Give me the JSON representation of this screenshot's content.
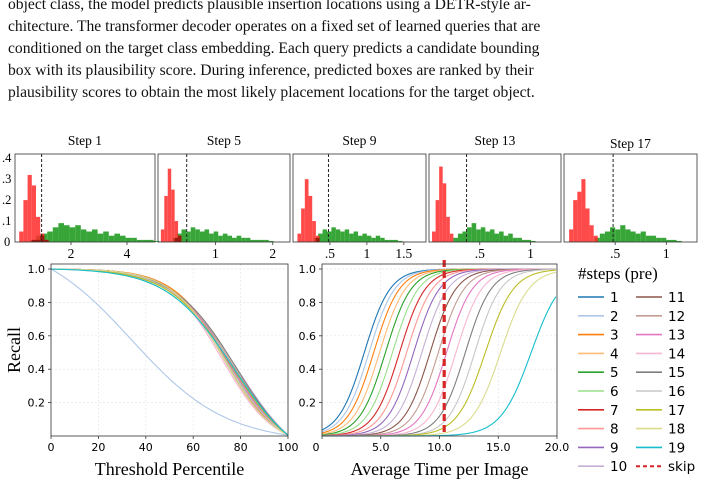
{
  "paragraph": [
    "object class, the model predicts plausible insertion locations using a DETR-style ar-",
    "chitecture. The transformer decoder operates on a fixed set of learned queries that are",
    "conditioned on the target class embedding. Each query predicts a candidate bounding",
    "box with its plausibility score. During inference, predicted boxes are ranked by their",
    "plausibility scores to obtain the most likely placement locations for the target object."
  ],
  "colors": {
    "red_hist": "#ff2a2a",
    "green_hist": "#2ca02c",
    "overlap_hist": "#9a1a10",
    "skip": "#d62728"
  },
  "chart_data": [
    {
      "type": "histogram",
      "panels": [
        {
          "title": "Step 1",
          "xticks": [
            "2",
            "4"
          ],
          "xtick_values": [
            2,
            4
          ],
          "xlim": [
            0,
            5.0
          ],
          "dashed_x": 0.95,
          "red": {
            "start": 0.15,
            "width": 0.15,
            "counts": [
              0.05,
              0.2,
              0.32,
              0.27,
              0.12,
              0.04,
              0.01
            ]
          },
          "green": {
            "start": 0.55,
            "width": 0.2,
            "counts": [
              0.01,
              0.03,
              0.04,
              0.05,
              0.07,
              0.09,
              0.08,
              0.07,
              0.08,
              0.06,
              0.05,
              0.06,
              0.04,
              0.05,
              0.03,
              0.04,
              0.03,
              0.02,
              0.02,
              0.01,
              0.01,
              0.01,
              0.005
            ]
          }
        },
        {
          "title": "Step 5",
          "xticks": [
            "1",
            "2"
          ],
          "xtick_values": [
            1,
            2
          ],
          "xlim": [
            0,
            2.3
          ],
          "dashed_x": 0.5,
          "red": {
            "start": 0.05,
            "width": 0.06,
            "counts": [
              0.06,
              0.22,
              0.35,
              0.25,
              0.1,
              0.03
            ]
          },
          "green": {
            "start": 0.25,
            "width": 0.08,
            "counts": [
              0.02,
              0.04,
              0.06,
              0.05,
              0.07,
              0.06,
              0.05,
              0.06,
              0.04,
              0.05,
              0.03,
              0.04,
              0.03,
              0.02,
              0.03,
              0.02,
              0.02,
              0.01,
              0.01,
              0.01,
              0.01,
              0.005
            ]
          }
        },
        {
          "title": "Step 9",
          "xticks": [
            ".5",
            "1",
            "1.5"
          ],
          "xtick_values": [
            0.5,
            1,
            1.5
          ],
          "xlim": [
            0,
            1.8
          ],
          "dashed_x": 0.48,
          "red": {
            "start": 0.06,
            "width": 0.05,
            "counts": [
              0.04,
              0.16,
              0.3,
              0.22,
              0.1,
              0.03
            ]
          },
          "green": {
            "start": 0.28,
            "width": 0.06,
            "counts": [
              0.02,
              0.04,
              0.06,
              0.05,
              0.07,
              0.06,
              0.05,
              0.06,
              0.04,
              0.05,
              0.03,
              0.04,
              0.03,
              0.02,
              0.03,
              0.02,
              0.01,
              0.01,
              0.01,
              0.005
            ]
          }
        },
        {
          "title": "Step 13",
          "xticks": [
            ".5",
            "1"
          ],
          "xtick_values": [
            0.5,
            1
          ],
          "xlim": [
            0,
            1.3
          ],
          "dashed_x": 0.37,
          "red": {
            "start": 0.03,
            "width": 0.035,
            "counts": [
              0.05,
              0.2,
              0.36,
              0.28,
              0.12,
              0.04
            ]
          },
          "green": {
            "start": 0.24,
            "width": 0.045,
            "counts": [
              0.02,
              0.04,
              0.05,
              0.07,
              0.09,
              0.06,
              0.07,
              0.05,
              0.06,
              0.04,
              0.05,
              0.03,
              0.04,
              0.02,
              0.02,
              0.01,
              0.01,
              0.005
            ]
          }
        },
        {
          "title": "Step 17",
          "xticks": [
            ".5",
            "1"
          ],
          "xtick_values": [
            0.5,
            1
          ],
          "xlim": [
            0,
            1.3
          ],
          "dashed_x": 0.48,
          "red": {
            "start": 0.05,
            "width": 0.04,
            "counts": [
              0.06,
              0.2,
              0.24,
              0.3,
              0.16,
              0.08,
              0.03
            ]
          },
          "green": {
            "start": 0.3,
            "width": 0.05,
            "counts": [
              0.02,
              0.04,
              0.05,
              0.07,
              0.06,
              0.08,
              0.06,
              0.05,
              0.04,
              0.05,
              0.03,
              0.03,
              0.02,
              0.02,
              0.01,
              0.01,
              0.005
            ]
          }
        }
      ],
      "yticks": [
        ".4",
        ".3",
        ".2",
        ".1",
        "0"
      ],
      "ytick_values": [
        0.4,
        0.3,
        0.2,
        0.1,
        0
      ],
      "ylim": [
        0,
        0.42
      ]
    },
    {
      "type": "line",
      "xlabel": "Threshold Percentile",
      "ylabel": "Recall",
      "xticks": [
        "0",
        "20",
        "40",
        "60",
        "80",
        "100"
      ],
      "xtick_values": [
        0,
        20,
        40,
        60,
        80,
        100
      ],
      "yticks": [
        "1.0",
        "0.8",
        "0.6",
        "0.4",
        "0.2"
      ],
      "ytick_values": [
        1.0,
        0.8,
        0.6,
        0.4,
        0.2
      ],
      "xlim": [
        0,
        100
      ],
      "ylim": [
        0,
        1.03
      ],
      "grid": true,
      "series_centers": [
        75,
        34,
        74,
        78,
        74,
        77,
        73,
        76,
        75,
        79,
        73,
        77,
        75,
        72,
        78,
        74,
        76,
        73,
        77
      ],
      "series_widths": [
        12,
        20,
        11,
        13,
        12,
        14,
        11,
        13,
        12,
        14,
        11,
        13,
        12,
        11,
        13,
        12,
        13,
        11,
        14
      ]
    },
    {
      "type": "line",
      "xlabel": "Average Time per Image",
      "xticks": [
        "0",
        "5.0",
        "10.0",
        "15.0",
        "20.0"
      ],
      "xtick_values": [
        0,
        5,
        10,
        15,
        20
      ],
      "yticks": [
        "1.0",
        "0.8",
        "0.6",
        "0.4",
        "0.2"
      ],
      "ytick_values": [
        1.0,
        0.8,
        0.6,
        0.4,
        0.2
      ],
      "xlim": [
        0,
        20
      ],
      "ylim": [
        0,
        1.03
      ],
      "grid": true,
      "skip_x": 10.4,
      "series_centers": [
        3.6,
        4.0,
        4.4,
        4.9,
        5.4,
        6.0,
        6.6,
        7.2,
        7.8,
        8.5,
        9.2,
        9.9,
        10.6,
        11.4,
        12.2,
        13.0,
        13.9,
        15.2,
        17.8
      ],
      "series_widths": [
        1.1,
        1.1,
        1.1,
        1.1,
        1.1,
        1.1,
        1.1,
        1.1,
        1.1,
        1.1,
        1.1,
        1.1,
        1.1,
        1.1,
        1.1,
        1.1,
        1.2,
        1.2,
        1.3
      ]
    }
  ],
  "legend": {
    "title": "#steps (pre)",
    "items": [
      {
        "label": "1",
        "color": "#1f77b4"
      },
      {
        "label": "2",
        "color": "#aec7e8"
      },
      {
        "label": "3",
        "color": "#ff7f0e"
      },
      {
        "label": "4",
        "color": "#ffbb78"
      },
      {
        "label": "5",
        "color": "#2ca02c"
      },
      {
        "label": "6",
        "color": "#98df8a"
      },
      {
        "label": "7",
        "color": "#d62728"
      },
      {
        "label": "8",
        "color": "#ff9896"
      },
      {
        "label": "9",
        "color": "#9467bd"
      },
      {
        "label": "10",
        "color": "#c5b0d5"
      },
      {
        "label": "11",
        "color": "#8c564b"
      },
      {
        "label": "12",
        "color": "#c49c94"
      },
      {
        "label": "13",
        "color": "#e377c2"
      },
      {
        "label": "14",
        "color": "#f7b6d2"
      },
      {
        "label": "15",
        "color": "#7f7f7f"
      },
      {
        "label": "16",
        "color": "#c7c7c7"
      },
      {
        "label": "17",
        "color": "#bcbd22"
      },
      {
        "label": "18",
        "color": "#dbdb8d"
      },
      {
        "label": "19",
        "color": "#17becf"
      },
      {
        "label": "skip",
        "color": "#d62728",
        "dashed": true
      }
    ]
  }
}
